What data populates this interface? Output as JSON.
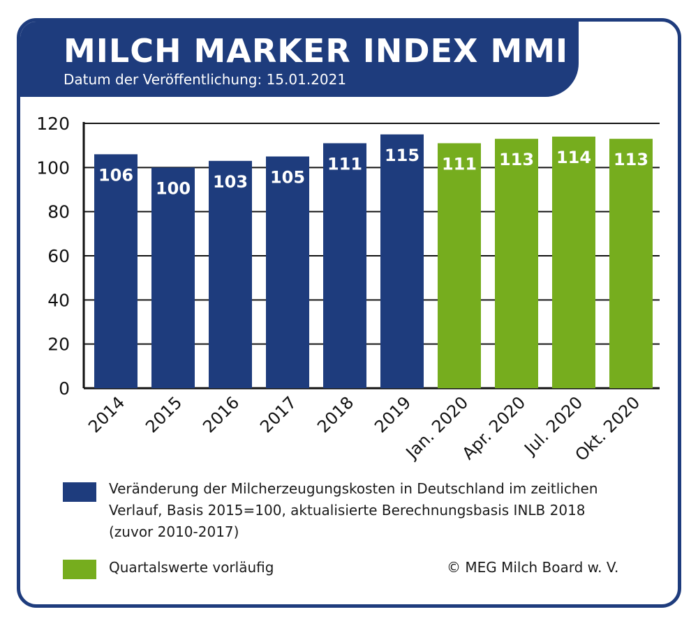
{
  "header": {
    "title": "MILCH MARKER INDEX MMI",
    "subtitle": "Datum der Veröffentlichung: 15.01.2021"
  },
  "colors": {
    "navy": "#1e3c7d",
    "green": "#76ad1e"
  },
  "chart_data": {
    "type": "bar",
    "categories": [
      "2014",
      "2015",
      "2016",
      "2017",
      "2018",
      "2019",
      "Jan. 2020",
      "Apr. 2020",
      "Jul. 2020",
      "Okt. 2020"
    ],
    "values": [
      106,
      100,
      103,
      105,
      111,
      115,
      111,
      113,
      114,
      113
    ],
    "bar_colors": [
      "#1e3c7d",
      "#1e3c7d",
      "#1e3c7d",
      "#1e3c7d",
      "#1e3c7d",
      "#1e3c7d",
      "#76ad1e",
      "#76ad1e",
      "#76ad1e",
      "#76ad1e"
    ],
    "ylim": [
      0,
      120
    ],
    "yticks": [
      0,
      20,
      40,
      60,
      80,
      100,
      120
    ],
    "grid": true,
    "data_labels": true
  },
  "legend": {
    "items": [
      {
        "color": "#1e3c7d",
        "lines": [
          "Veränderung der Milcherzeugungskosten in Deutschland im zeitlichen",
          "Verlauf, Basis 2015=100, aktualisierte Berechnungsbasis INLB 2018",
          "(zuvor 2010-2017)"
        ]
      },
      {
        "color": "#76ad1e",
        "lines": [
          "Quartalswerte vorläufig"
        ]
      }
    ]
  },
  "footer": {
    "copyright": "© MEG Milch Board w. V."
  }
}
